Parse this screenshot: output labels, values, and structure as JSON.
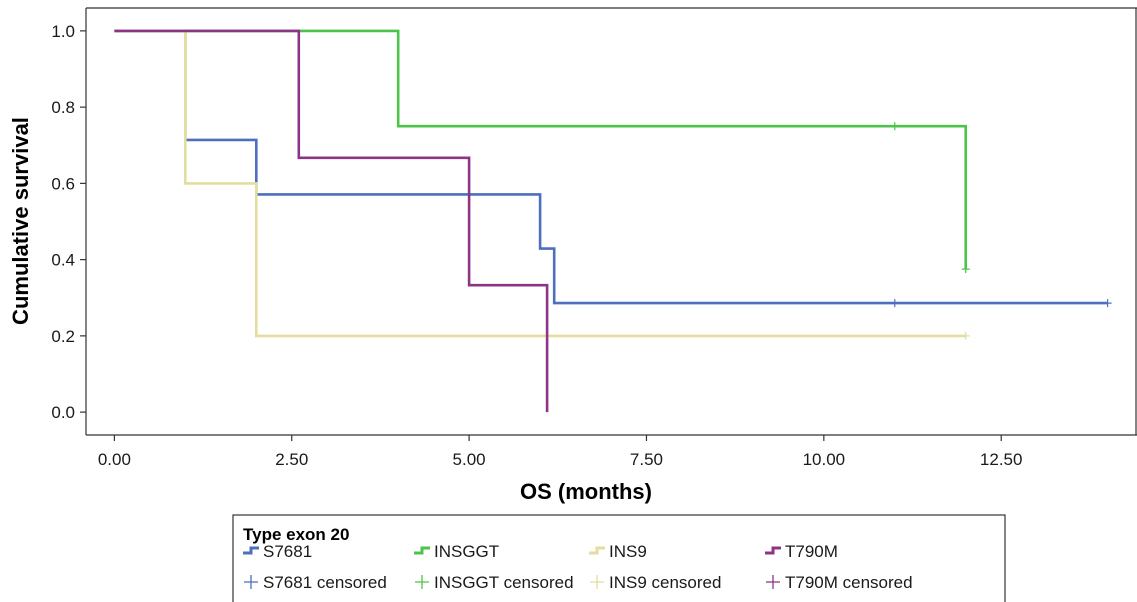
{
  "chart_data": {
    "type": "line",
    "subtype": "kaplan-meier-step",
    "xlabel": "OS (months)",
    "ylabel": "Cumulative survival",
    "xlim": [
      -0.4,
      14.4
    ],
    "ylim": [
      -0.06,
      1.06
    ],
    "x_ticks": [
      0.0,
      2.5,
      5.0,
      7.5,
      10.0,
      12.5
    ],
    "x_tick_labels": [
      "0.00",
      "2.50",
      "5.00",
      "7.50",
      "10.00",
      "12.50"
    ],
    "y_ticks": [
      0.0,
      0.2,
      0.4,
      0.6,
      0.8,
      1.0
    ],
    "y_tick_labels": [
      "0.0",
      "0.2",
      "0.4",
      "0.6",
      "0.8",
      "1.0"
    ],
    "grid": false,
    "legend": {
      "title": "Type exon 20",
      "placement": "bottom",
      "entries": [
        "S7681",
        "INSGGT",
        "INS9",
        "T790M",
        "S7681 censored",
        "INSGGT censored",
        "INS9 censored",
        "T790M censored"
      ]
    },
    "series": [
      {
        "name": "S7681",
        "color": "#4e6fbd",
        "points": [
          [
            0,
            1.0
          ],
          [
            1.0,
            1.0
          ],
          [
            1.0,
            0.714
          ],
          [
            2.0,
            0.714
          ],
          [
            2.0,
            0.571
          ],
          [
            6.0,
            0.571
          ],
          [
            6.0,
            0.429
          ],
          [
            6.2,
            0.429
          ],
          [
            6.2,
            0.286
          ],
          [
            14.0,
            0.286
          ]
        ],
        "censored": [
          [
            11.0,
            0.286
          ],
          [
            14.0,
            0.286
          ]
        ]
      },
      {
        "name": "INSGGT",
        "color": "#4cc44c",
        "points": [
          [
            0,
            1.0
          ],
          [
            4.0,
            1.0
          ],
          [
            4.0,
            0.75
          ],
          [
            12.0,
            0.75
          ],
          [
            12.0,
            0.375
          ]
        ],
        "censored": [
          [
            11.0,
            0.75
          ],
          [
            12.0,
            0.375
          ]
        ]
      },
      {
        "name": "INS9",
        "color": "#e3dea0",
        "points": [
          [
            0,
            1.0
          ],
          [
            1.0,
            1.0
          ],
          [
            1.0,
            0.6
          ],
          [
            2.0,
            0.6
          ],
          [
            2.0,
            0.2
          ],
          [
            12.0,
            0.2
          ]
        ],
        "censored": [
          [
            12.0,
            0.2
          ]
        ]
      },
      {
        "name": "T790M",
        "color": "#8c3586",
        "points": [
          [
            0,
            1.0
          ],
          [
            2.6,
            1.0
          ],
          [
            2.6,
            0.667
          ],
          [
            5.0,
            0.667
          ],
          [
            5.0,
            0.333
          ],
          [
            6.1,
            0.333
          ],
          [
            6.1,
            0.0
          ]
        ],
        "censored": []
      }
    ]
  }
}
